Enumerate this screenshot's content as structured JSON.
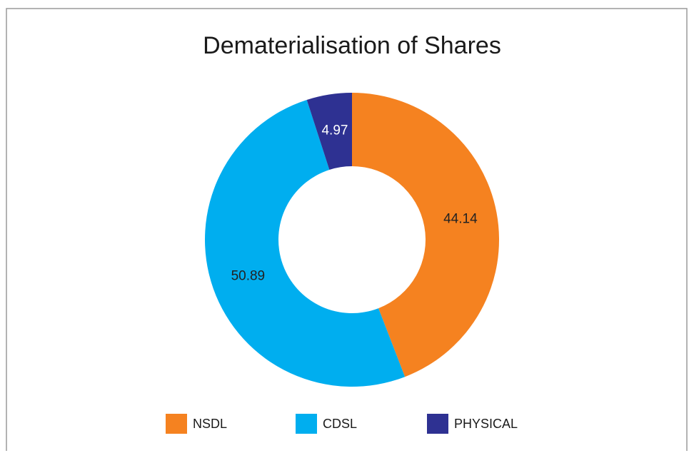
{
  "chart_data": {
    "type": "donut",
    "title": "Dematerialisation of Shares",
    "categories": [
      "NSDL",
      "CDSL",
      "PHYSICAL"
    ],
    "values": [
      44.14,
      50.89,
      4.97
    ],
    "colors": [
      "#f58220",
      "#00aeef",
      "#2e3192"
    ],
    "label_colors": [
      "#222222",
      "#222222",
      "#ffffff"
    ],
    "legend": "bottom"
  }
}
